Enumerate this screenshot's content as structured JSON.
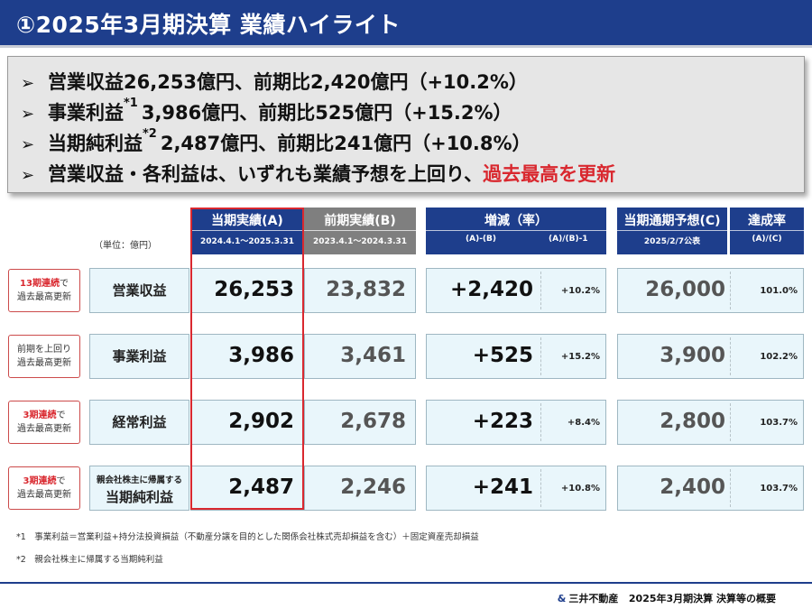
{
  "header": {
    "title": "①2025年3月期決算 業績ハイライト"
  },
  "summary": {
    "bullets": [
      {
        "text": "営業収益26,253億円、前期比2,420億円（+10.2%）"
      },
      {
        "pre": "事業利益",
        "sup": "*1",
        "post": "3,986億円、前期比525億円（+15.2%）"
      },
      {
        "pre": "当期純利益",
        "sup": "*2",
        "post": "2,487億円、前期比241億円（+10.8%）"
      },
      {
        "pre": "営業収益・各利益は、いずれも業績予想を上回り、",
        "highlight": "過去最高を更新"
      }
    ]
  },
  "table": {
    "unit": "（単位：億円）",
    "headers": {
      "actual": {
        "title": "当期実績(A)",
        "sub": "2024.4.1～2025.3.31"
      },
      "prior": {
        "title": "前期実績(B)",
        "sub": "2023.4.1～2024.3.31"
      },
      "change": {
        "title": "増減（率）",
        "sub1": "(A)-(B)",
        "sub2": "(A)/(B)-1"
      },
      "forecast": {
        "title": "当期通期予想(C)",
        "sub": "2025/2/7公表"
      },
      "achieve": {
        "title": "達成率",
        "sub": "(A)/(C)"
      }
    },
    "rows": [
      {
        "badge_red": "13期連続",
        "badge_small": "で",
        "badge_line2": "過去最高更新",
        "label": "営業収益",
        "actual": "26,253",
        "prior": "23,832",
        "diff": "+2,420",
        "rate": "+10.2%",
        "forecast": "26,000",
        "achieve": "101.0%"
      },
      {
        "badge_red": "",
        "badge_small": "前期を上回り",
        "badge_line2": "過去最高更新",
        "label": "事業利益",
        "actual": "3,986",
        "prior": "3,461",
        "diff": "+525",
        "rate": "+15.2%",
        "forecast": "3,900",
        "achieve": "102.2%"
      },
      {
        "badge_red": "3期連続",
        "badge_small": "で",
        "badge_line2": "過去最高更新",
        "label": "経常利益",
        "actual": "2,902",
        "prior": "2,678",
        "diff": "+223",
        "rate": "+8.4%",
        "forecast": "2,800",
        "achieve": "103.7%"
      },
      {
        "badge_red": "3期連続",
        "badge_small": "で",
        "badge_line2": "過去最高更新",
        "label_small": "親会社株主に帰属する",
        "label": "当期純利益",
        "actual": "2,487",
        "prior": "2,246",
        "diff": "+241",
        "rate": "+10.8%",
        "forecast": "2,400",
        "achieve": "103.7%"
      }
    ]
  },
  "footnotes": [
    "*1　事業利益＝営業利益+持分法投資損益（不動産分譲を目的とした関係会社株式売却損益を含む）＋固定資産売却損益",
    "*2　親会社株主に帰属する当期純利益"
  ],
  "footer": {
    "logo": "&",
    "company": "三井不動産",
    "doc": "2025年3月期決算 決算等の概要"
  },
  "colors": {
    "navy": "#1e3e8c",
    "grey_header": "#7f7f7f",
    "red": "#d9282f",
    "cell_bg": "#e9f6fb"
  }
}
